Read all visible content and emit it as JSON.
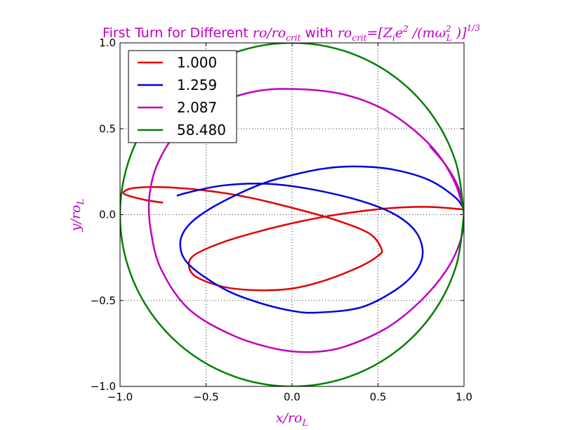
{
  "chart_data": {
    "type": "line",
    "title_prefix": "First Turn for Different ",
    "title_math_1": "ro/ro",
    "title_math_1_sub": "crit",
    "title_mid": " with ",
    "title_math_2": "ro",
    "title_math_2_sub": "crit",
    "title_math_2_rest": "=[Z",
    "title_math_2_zsub": "i",
    "title_math_2_e": "e",
    "title_math_2_esup": "2",
    "title_math_2_div": " /(mω",
    "title_math_2_wsup": "2",
    "title_math_2_wsub": "L",
    "title_math_2_close": " )]",
    "title_math_2_exp": "1/3",
    "xlabel": "x/ro",
    "xlabel_sub": "L",
    "ylabel": "y/ro",
    "ylabel_sub": "L",
    "xlim": [
      -1.0,
      1.0
    ],
    "ylim": [
      -1.0,
      1.0
    ],
    "xticks": [
      "−1.0",
      "−0.5",
      "0.0",
      "0.5",
      "1.0"
    ],
    "yticks": [
      "−1.0",
      "−0.5",
      "0.0",
      "0.5",
      "1.0"
    ],
    "xtick_values": [
      -1.0,
      -0.5,
      0.0,
      0.5,
      1.0
    ],
    "ytick_values": [
      -1.0,
      -0.5,
      0.0,
      0.5,
      1.0
    ],
    "grid": true,
    "legend_position": "top-left",
    "series": [
      {
        "name": "1.000",
        "color": "#e00000",
        "x": [
          1.0,
          0.8,
          0.6,
          0.4,
          0.2,
          0.0,
          -0.2,
          -0.4,
          -0.56,
          -0.6,
          -0.56,
          -0.4,
          -0.2,
          0.0,
          0.2,
          0.4,
          0.5,
          0.52,
          0.45,
          0.25,
          0.0,
          -0.25,
          -0.5,
          -0.75,
          -0.92,
          -0.98,
          -0.95,
          -0.85,
          -0.75
        ],
        "y": [
          0.03,
          0.045,
          0.04,
          0.02,
          -0.01,
          -0.05,
          -0.1,
          -0.16,
          -0.23,
          -0.29,
          -0.36,
          -0.42,
          -0.44,
          -0.43,
          -0.38,
          -0.3,
          -0.24,
          -0.2,
          -0.11,
          -0.03,
          0.04,
          0.1,
          0.14,
          0.16,
          0.155,
          0.13,
          0.11,
          0.085,
          0.07
        ]
      },
      {
        "name": "1.259",
        "color": "#0000e0",
        "x": [
          1.0,
          0.95,
          0.8,
          0.6,
          0.4,
          0.2,
          0.0,
          -0.2,
          -0.45,
          -0.6,
          -0.65,
          -0.6,
          -0.4,
          -0.2,
          0.0,
          0.15,
          0.4,
          0.6,
          0.72,
          0.76,
          0.72,
          0.6,
          0.4,
          0.1,
          -0.15,
          -0.4,
          -0.6,
          -0.67
        ],
        "y": [
          0.03,
          0.1,
          0.2,
          0.26,
          0.28,
          0.27,
          0.23,
          0.17,
          0.05,
          -0.06,
          -0.17,
          -0.29,
          -0.43,
          -0.51,
          -0.56,
          -0.57,
          -0.54,
          -0.44,
          -0.33,
          -0.22,
          -0.1,
          0.0,
          0.08,
          0.15,
          0.18,
          0.17,
          0.13,
          0.11
        ]
      },
      {
        "name": "2.087",
        "color": "#bf00bf",
        "x": [
          0.8,
          0.9,
          0.97,
          1.0,
          0.98,
          0.9,
          0.75,
          0.55,
          0.3,
          0.1,
          -0.1,
          -0.35,
          -0.6,
          -0.76,
          -0.82,
          -0.83,
          -0.78,
          -0.65,
          -0.45,
          -0.2,
          0.05,
          0.3,
          0.52,
          0.7,
          0.85,
          0.95,
          1.0
        ],
        "y": [
          0.4,
          0.28,
          0.15,
          0.0,
          -0.15,
          -0.32,
          -0.5,
          -0.66,
          -0.77,
          -0.8,
          -0.78,
          -0.7,
          -0.55,
          -0.32,
          -0.1,
          0.1,
          0.3,
          0.5,
          0.64,
          0.72,
          0.73,
          0.7,
          0.62,
          0.5,
          0.35,
          0.18,
          0.02
        ]
      },
      {
        "name": "58.480",
        "color": "#008000",
        "x": [
          1.0,
          0.951,
          0.809,
          0.588,
          0.309,
          0.0,
          -0.309,
          -0.588,
          -0.809,
          -0.951,
          -1.0,
          -0.951,
          -0.809,
          -0.588,
          -0.309,
          0.0,
          0.309,
          0.588,
          0.809,
          0.951,
          1.0
        ],
        "y": [
          0.0,
          0.309,
          0.588,
          0.809,
          0.951,
          1.0,
          0.951,
          0.809,
          0.588,
          0.309,
          0.0,
          -0.309,
          -0.588,
          -0.809,
          -0.951,
          -1.0,
          -0.951,
          -0.809,
          -0.588,
          -0.309,
          0.0
        ]
      }
    ]
  }
}
